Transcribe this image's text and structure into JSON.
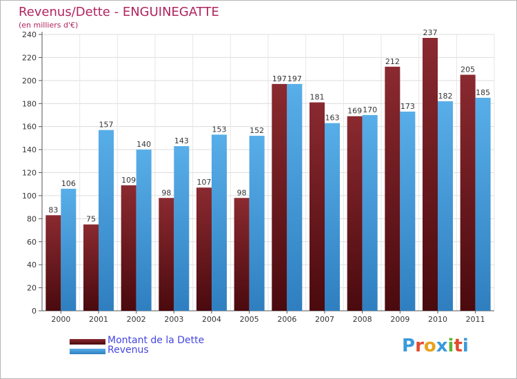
{
  "header": {
    "title": "Revenus/Dette - ENGUINEGATTE",
    "subtitle": "(en milliers d'€)"
  },
  "logo": {
    "text": "Proxiti",
    "colors": [
      "#3a9ad9",
      "#e04b2e",
      "#e8a21a",
      "#3a9ad9",
      "#5cb531",
      "#e04b2e",
      "#3a9ad9"
    ]
  },
  "chart_data": {
    "type": "bar",
    "title": "Revenus/Dette - ENGUINEGATTE",
    "subtitle": "(en milliers d'€)",
    "categories": [
      "2000",
      "2001",
      "2002",
      "2003",
      "2004",
      "2005",
      "2006",
      "2007",
      "2008",
      "2009",
      "2010",
      "2011"
    ],
    "series": [
      {
        "name": "Montant de la Dette",
        "color": "#7a2228",
        "values": [
          83,
          75,
          109,
          98,
          107,
          98,
          197,
          181,
          169,
          212,
          237,
          205
        ]
      },
      {
        "name": "Revenus",
        "color": "#4a9fe0",
        "values": [
          106,
          157,
          140,
          143,
          153,
          152,
          197,
          163,
          170,
          173,
          182,
          185
        ]
      }
    ],
    "ylim": [
      0,
      240
    ],
    "yticks": [
      0,
      20,
      40,
      60,
      80,
      100,
      120,
      140,
      160,
      180,
      200,
      220,
      240
    ],
    "grid": true,
    "legend": "bottom-left",
    "data_labels": true
  }
}
